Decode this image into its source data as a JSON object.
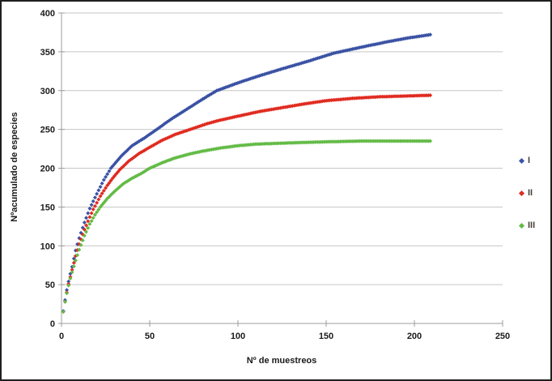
{
  "chart_data": {
    "type": "scatter",
    "title": "",
    "xlabel": "Nº de muestreos",
    "ylabel": "Nºacumulado de especies",
    "xlim": [
      0,
      250
    ],
    "ylim": [
      0,
      400
    ],
    "x_ticks": [
      0,
      50,
      100,
      150,
      200,
      250
    ],
    "y_ticks": [
      0,
      50,
      100,
      150,
      200,
      250,
      300,
      350,
      400
    ],
    "grid": "horizontal",
    "legend_position": "right",
    "marker": "diamond",
    "colors": {
      "grid": "#C6C6C6",
      "axis": "#9C9C9C",
      "tick_label": "#1A1A1A"
    },
    "series": [
      {
        "name": "I",
        "color": "#3A52A4",
        "points": [
          [
            1,
            16
          ],
          [
            2,
            30
          ],
          [
            3,
            43
          ],
          [
            4,
            54
          ],
          [
            5,
            64
          ],
          [
            6,
            73
          ],
          [
            8,
            94
          ],
          [
            10,
            110
          ],
          [
            13,
            130
          ],
          [
            16,
            148
          ],
          [
            20,
            167
          ],
          [
            24,
            185
          ],
          [
            28,
            200
          ],
          [
            34,
            216
          ],
          [
            40,
            229
          ],
          [
            47,
            239
          ],
          [
            54,
            250
          ],
          [
            62,
            263
          ],
          [
            71,
            276
          ],
          [
            80,
            289
          ],
          [
            88,
            300
          ],
          [
            100,
            310
          ],
          [
            112,
            319
          ],
          [
            125,
            328
          ],
          [
            140,
            338
          ],
          [
            154,
            348
          ],
          [
            170,
            356
          ],
          [
            185,
            363
          ],
          [
            197,
            368
          ],
          [
            209,
            372
          ]
        ]
      },
      {
        "name": "II",
        "color": "#E02B20",
        "points": [
          [
            1,
            15
          ],
          [
            2,
            28
          ],
          [
            3,
            40
          ],
          [
            4,
            51
          ],
          [
            5,
            60
          ],
          [
            6,
            69
          ],
          [
            8,
            87
          ],
          [
            10,
            102
          ],
          [
            13,
            121
          ],
          [
            16,
            137
          ],
          [
            18,
            147
          ],
          [
            22,
            164
          ],
          [
            26,
            178
          ],
          [
            30,
            190
          ],
          [
            33,
            198
          ],
          [
            38,
            209
          ],
          [
            44,
            219
          ],
          [
            50,
            227
          ],
          [
            57,
            236
          ],
          [
            65,
            244
          ],
          [
            73,
            250
          ],
          [
            82,
            257
          ],
          [
            90,
            262
          ],
          [
            100,
            267
          ],
          [
            112,
            273
          ],
          [
            125,
            278
          ],
          [
            138,
            283
          ],
          [
            150,
            287
          ],
          [
            165,
            290
          ],
          [
            180,
            292
          ],
          [
            195,
            293
          ],
          [
            209,
            294
          ]
        ]
      },
      {
        "name": "III",
        "color": "#63BB46",
        "points": [
          [
            1,
            15
          ],
          [
            2,
            28
          ],
          [
            3,
            39
          ],
          [
            4,
            49
          ],
          [
            5,
            58
          ],
          [
            6,
            66
          ],
          [
            8,
            81
          ],
          [
            10,
            95
          ],
          [
            13,
            113
          ],
          [
            16,
            128
          ],
          [
            19,
            140
          ],
          [
            22,
            150
          ],
          [
            26,
            161
          ],
          [
            30,
            170
          ],
          [
            35,
            180
          ],
          [
            40,
            187
          ],
          [
            45,
            193
          ],
          [
            50,
            200
          ],
          [
            57,
            207
          ],
          [
            64,
            213
          ],
          [
            72,
            218
          ],
          [
            80,
            222
          ],
          [
            90,
            226
          ],
          [
            100,
            229
          ],
          [
            110,
            231
          ],
          [
            122,
            232
          ],
          [
            135,
            233
          ],
          [
            150,
            234
          ],
          [
            170,
            235
          ],
          [
            190,
            235
          ],
          [
            209,
            235
          ]
        ]
      }
    ]
  }
}
